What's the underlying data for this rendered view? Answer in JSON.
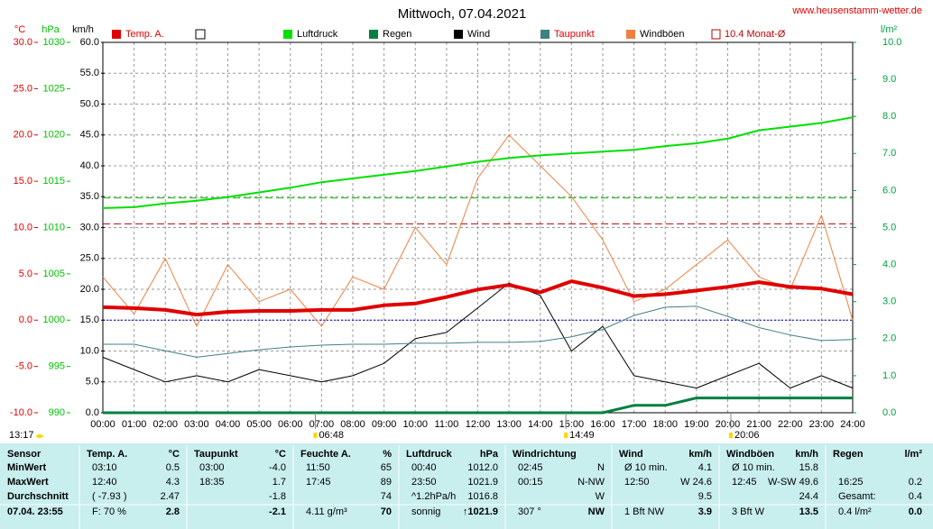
{
  "chart_data": {
    "type": "line",
    "title": "Mittwoch, 07.04.2021",
    "source": "www.heusenstamm-wetter.de",
    "moon_label": "13:17",
    "xlim": [
      0,
      24
    ],
    "xticks": [
      {
        "value": 0,
        "label": "00:00"
      },
      {
        "value": 1,
        "label": "01:00"
      },
      {
        "value": 2,
        "label": "02:00"
      },
      {
        "value": 3,
        "label": "03:00"
      },
      {
        "value": 4,
        "label": "04:00"
      },
      {
        "value": 5,
        "label": "05:00"
      },
      {
        "value": 6,
        "label": "06:00"
      },
      {
        "value": 7,
        "label": "07:00"
      },
      {
        "value": 8,
        "label": "08:00"
      },
      {
        "value": 9,
        "label": "09:00"
      },
      {
        "value": 10,
        "label": "10:00"
      },
      {
        "value": 11,
        "label": "11:00"
      },
      {
        "value": 12,
        "label": "12:00"
      },
      {
        "value": 13,
        "label": "13:00"
      },
      {
        "value": 14,
        "label": "14:00"
      },
      {
        "value": 15,
        "label": "15:00"
      },
      {
        "value": 16,
        "label": "16:00"
      },
      {
        "value": 17,
        "label": "17:00"
      },
      {
        "value": 18,
        "label": "18:00"
      },
      {
        "value": 19,
        "label": "19:00"
      },
      {
        "value": 20,
        "label": "20:00"
      },
      {
        "value": 21,
        "label": "21:00"
      },
      {
        "value": 22,
        "label": "22:00"
      },
      {
        "value": 23,
        "label": "23:00"
      },
      {
        "value": 24,
        "label": "24:00"
      }
    ],
    "grid": true,
    "axes": [
      {
        "label": "°C",
        "color": "#e00000",
        "lim": [
          -10,
          30
        ],
        "ticks": [
          {
            "value": 30,
            "label": "30.0"
          },
          {
            "value": 25,
            "label": "25.0"
          },
          {
            "value": 20,
            "label": "20.0"
          },
          {
            "value": 15,
            "label": "15.0"
          },
          {
            "value": 10,
            "label": "10.0"
          },
          {
            "value": 5,
            "label": "5.0"
          },
          {
            "value": 0,
            "label": "0.0"
          },
          {
            "value": -5,
            "label": "-5.0"
          },
          {
            "value": -10,
            "label": "-10.0"
          }
        ]
      },
      {
        "label": "hPa",
        "color": "#00c000",
        "lim": [
          990,
          1030
        ],
        "ticks": [
          1030,
          1025,
          1020,
          1015,
          1010,
          1005,
          1000,
          995,
          990
        ]
      },
      {
        "label": "km/h",
        "color": "#000000",
        "lim": [
          0,
          60
        ],
        "ticks": [
          {
            "value": 60,
            "label": "60.0"
          },
          {
            "value": 55,
            "label": "55.0"
          },
          {
            "value": 50,
            "label": "50.0"
          },
          {
            "value": 45,
            "label": "45.0"
          },
          {
            "value": 40,
            "label": "40.0"
          },
          {
            "value": 35,
            "label": "35.0"
          },
          {
            "value": 30,
            "label": "30.0"
          },
          {
            "value": 25,
            "label": "25.0"
          },
          {
            "value": 20,
            "label": "20.0"
          },
          {
            "value": 15,
            "label": "15.0"
          },
          {
            "value": 10,
            "label": "10.0"
          },
          {
            "value": 5,
            "label": "5.0"
          },
          {
            "value": 0,
            "label": "0.0"
          }
        ]
      },
      {
        "label": "l/m²",
        "color": "#00a040",
        "lim": [
          0,
          10
        ],
        "ticks": [
          {
            "value": 10,
            "label": "10.0"
          },
          {
            "value": 9,
            "label": "9.0"
          },
          {
            "value": 8,
            "label": "8.0"
          },
          {
            "value": 7,
            "label": "7.0"
          },
          {
            "value": 6,
            "label": "6.0"
          },
          {
            "value": 5,
            "label": "5.0"
          },
          {
            "value": 4,
            "label": "4.0"
          },
          {
            "value": 3,
            "label": "3.0"
          },
          {
            "value": 2,
            "label": "2.0"
          },
          {
            "value": 1,
            "label": "1.0"
          },
          {
            "value": 0,
            "label": "0.0"
          }
        ]
      }
    ],
    "x": [
      0,
      1,
      2,
      3,
      4,
      5,
      6,
      7,
      8,
      9,
      10,
      11,
      12,
      13,
      14,
      15,
      16,
      17,
      18,
      19,
      20,
      21,
      22,
      23,
      24
    ],
    "series": [
      {
        "name": "Temp. A.",
        "color": "#e00000",
        "axis": 0,
        "width": 4,
        "values": [
          1.4,
          1.3,
          1.1,
          0.6,
          0.9,
          1.0,
          1.0,
          1.1,
          1.1,
          1.6,
          1.8,
          2.5,
          3.3,
          3.8,
          3.0,
          4.2,
          3.5,
          2.6,
          2.8,
          3.2,
          3.6,
          4.1,
          3.6,
          3.4,
          2.8
        ]
      },
      {
        "name": "Luftdruck",
        "color": "#00e000",
        "axis": 1,
        "width": 2,
        "values": [
          1012.1,
          1012.2,
          1012.6,
          1012.9,
          1013.3,
          1013.8,
          1014.3,
          1014.9,
          1015.3,
          1015.7,
          1016.1,
          1016.6,
          1017.1,
          1017.5,
          1017.8,
          1018.0,
          1018.2,
          1018.4,
          1018.8,
          1019.1,
          1019.6,
          1020.5,
          1020.9,
          1021.3,
          1021.9
        ]
      },
      {
        "name": "Regen",
        "color": "#008040",
        "axis": 3,
        "width": 3,
        "values": [
          0,
          0,
          0,
          0,
          0,
          0,
          0,
          0,
          0,
          0,
          0,
          0,
          0,
          0,
          0,
          0,
          0,
          0.2,
          0.2,
          0.4,
          0.4,
          0.4,
          0.4,
          0.4,
          0.4
        ]
      },
      {
        "name": "Wind",
        "color": "#000000",
        "axis": 2,
        "width": 1,
        "values": [
          9,
          7,
          5,
          6,
          5,
          7,
          6,
          5,
          6,
          8,
          12,
          13,
          17,
          21,
          19,
          10,
          14,
          6,
          5,
          4,
          6,
          8,
          4,
          6,
          4
        ]
      },
      {
        "name": "Taupunkt",
        "color": "#408080",
        "axis": 0,
        "width": 1,
        "values": [
          -2.6,
          -2.6,
          -3.3,
          -4.0,
          -3.6,
          -3.2,
          -2.9,
          -2.7,
          -2.6,
          -2.6,
          -2.5,
          -2.5,
          -2.4,
          -2.4,
          -2.3,
          -1.8,
          -1.0,
          0.5,
          1.4,
          1.5,
          0.4,
          -0.8,
          -1.6,
          -2.2,
          -2.1
        ]
      },
      {
        "name": "Windböen",
        "color": "#f08040",
        "axis": 2,
        "width": 1,
        "values": [
          22,
          16,
          25,
          14,
          24,
          18,
          20,
          14,
          22,
          20,
          30,
          24,
          38,
          45,
          40,
          35,
          28,
          18,
          20,
          24,
          28,
          22,
          20,
          32,
          15
        ]
      }
    ],
    "reference_lines": [
      {
        "name": "10.4 Monat-Ø",
        "color": "#c00000",
        "axis": 0,
        "value": 10.4,
        "dash": "8 4"
      },
      {
        "value": 1013.2,
        "axis": 1,
        "color": "#00c000",
        "dash": "8 4"
      },
      {
        "value": 0,
        "axis": 0,
        "color": "#0000c0",
        "dash": "2 2"
      }
    ],
    "markers": [
      {
        "label": "06:48",
        "x": 6.8
      },
      {
        "label": "14:49",
        "x": 14.82
      },
      {
        "label": "20:06",
        "x": 20.1
      }
    ]
  },
  "table": {
    "row_labels": [
      "Sensor",
      "MinWert",
      "MaxWert",
      "Durchschnitt",
      "07.04. 23:55"
    ],
    "groups": [
      {
        "name": "Temp. A.",
        "unit": "°C",
        "rows": [
          [
            "03:10",
            "0.5"
          ],
          [
            "12:40",
            "4.3"
          ],
          [
            "( -7.93 )",
            "2.47"
          ],
          [
            "F: 70 %",
            "2.8"
          ]
        ]
      },
      {
        "name": "Taupunkt",
        "unit": "°C",
        "rows": [
          [
            "03:00",
            "-4.0"
          ],
          [
            "18:35",
            "1.7"
          ],
          [
            null,
            "-1.8"
          ],
          [
            null,
            "-2.1"
          ]
        ]
      },
      {
        "name": "Feuchte A.",
        "unit": "%",
        "rows": [
          [
            "11:50",
            "65"
          ],
          [
            "17:45",
            "89"
          ],
          [
            null,
            "74"
          ],
          [
            "4.11 g/m³",
            "70"
          ]
        ]
      },
      {
        "name": "Luftdruck",
        "unit": "hPa",
        "rows": [
          [
            "00:40",
            "1012.0"
          ],
          [
            "23:50",
            "1021.9"
          ],
          [
            "^1.2hPa/h",
            "1016.8"
          ],
          [
            "sonnig",
            "↑1021.9"
          ]
        ]
      },
      {
        "name": "Windrichtung",
        "unit": null,
        "rows": [
          [
            "02:45",
            "N"
          ],
          [
            "00:15",
            "N-NW"
          ],
          [
            null,
            "W"
          ],
          [
            "307 °",
            "NW"
          ]
        ]
      },
      {
        "name": "Wind",
        "unit": "km/h",
        "rows": [
          [
            "Ø 10 min.",
            "4.1"
          ],
          [
            "12:50",
            "W 24.6"
          ],
          [
            null,
            "9.5"
          ],
          [
            "1 Bft NW",
            "3.9"
          ]
        ]
      },
      {
        "name": "Windböen",
        "unit": "km/h",
        "rows": [
          [
            "Ø 10 min.",
            "15.8"
          ],
          [
            "12:45",
            "W-SW 49.6"
          ],
          [
            null,
            "24.4"
          ],
          [
            "3 Bft W",
            "13.5"
          ]
        ]
      },
      {
        "name": "Regen",
        "unit": "l/m²",
        "rows": [
          [
            null,
            null
          ],
          [
            "16:25",
            "0.2"
          ],
          [
            "Gesamt:",
            "0.4"
          ],
          [
            "0.4 l/m²",
            "0.0"
          ]
        ]
      }
    ]
  }
}
